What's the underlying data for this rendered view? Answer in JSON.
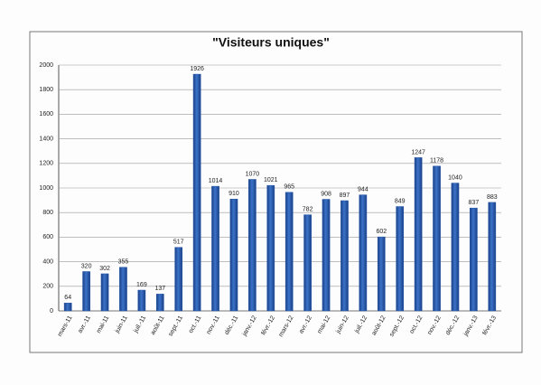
{
  "chart_data": {
    "type": "bar",
    "title": "\"Visiteurs uniques\"",
    "categories": [
      "mars-11",
      "avr.-11",
      "mai-11",
      "juin-11",
      "juil.-11",
      "août-11",
      "sept.-11",
      "oct.-11",
      "nov.-11",
      "déc.-11",
      "janv.-12",
      "févr.-12",
      "mars-12",
      "avr.-12",
      "mai-12",
      "juin-12",
      "juil.-12",
      "août-12",
      "sept.-12",
      "oct.-12",
      "nov.-12",
      "déc.-12",
      "janv.-13",
      "févr.-13"
    ],
    "values": [
      64,
      320,
      302,
      355,
      169,
      137,
      517,
      1926,
      1014,
      910,
      1070,
      1021,
      965,
      782,
      908,
      897,
      944,
      602,
      849,
      1247,
      1178,
      1040,
      837,
      883
    ],
    "color": "#2456a8",
    "ylim": [
      0,
      2000
    ],
    "yticks": [
      0,
      200,
      400,
      600,
      800,
      1000,
      1200,
      1400,
      1600,
      1800,
      2000
    ],
    "grid": true
  }
}
